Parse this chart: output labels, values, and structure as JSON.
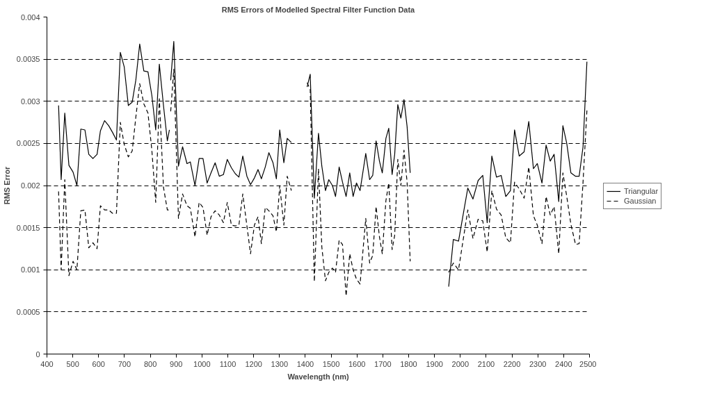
{
  "chart_data": {
    "type": "line",
    "title": "RMS Errors of Modelled Spectral Filter Function Data",
    "xlabel": "Wavelength (nm)",
    "ylabel": "RMS Error",
    "x": [
      445,
      455,
      469,
      485,
      501,
      516,
      531,
      547,
      562,
      578,
      594,
      607,
      623,
      639,
      654,
      669,
      684,
      699,
      715,
      730,
      744,
      759,
      775,
      791,
      806,
      821,
      835,
      851,
      866,
      874,
      877,
      879,
      891,
      909,
      925,
      942,
      955,
      973,
      989,
      1004,
      1020,
      1035,
      1051,
      1067,
      1083,
      1098,
      1114,
      1129,
      1143,
      1158,
      1174,
      1188,
      1203,
      1217,
      1230,
      1245,
      1259,
      1275,
      1288,
      1301,
      1317,
      1330,
      1346,
      1377,
      1407,
      1419,
      1435,
      1451,
      1464,
      1478,
      1491,
      1505,
      1517,
      1531,
      1544,
      1558,
      1572,
      1585,
      1598,
      1612,
      1634,
      1649,
      1661,
      1674,
      1687,
      1698,
      1712,
      1723,
      1736,
      1746,
      1758,
      1770,
      1782,
      1794,
      1806,
      1880,
      1955,
      1973,
      1993,
      2029,
      2049,
      2069,
      2087,
      2104,
      2122,
      2140,
      2158,
      2176,
      2194,
      2210,
      2228,
      2247,
      2265,
      2283,
      2298,
      2316,
      2332,
      2348,
      2363,
      2381,
      2397,
      2412,
      2428,
      2446,
      2460,
      2475,
      2490
    ],
    "series": [
      {
        "name": "Triangular",
        "color": "#000000",
        "line_style": "solid",
        "values": [
          0.00295,
          0.00207,
          0.00286,
          0.00224,
          0.00216,
          0.002,
          0.00267,
          0.00266,
          0.00237,
          0.00232,
          0.00237,
          0.00265,
          0.00277,
          0.00271,
          0.00263,
          0.00254,
          0.00358,
          0.00341,
          0.00295,
          0.00299,
          0.00325,
          0.00368,
          0.00336,
          0.00335,
          0.00307,
          0.00266,
          0.00344,
          0.00295,
          0.00253,
          0.00266,
          null,
          0.00325,
          0.00371,
          0.00223,
          0.00246,
          0.00226,
          0.00228,
          0.002,
          0.00232,
          0.00232,
          0.00203,
          0.00215,
          0.00227,
          0.00211,
          0.00213,
          0.00231,
          0.00221,
          0.00214,
          0.0021,
          0.00235,
          0.00211,
          0.00201,
          0.00209,
          0.00219,
          0.00208,
          0.00222,
          0.00239,
          0.00227,
          0.00208,
          0.00266,
          0.00227,
          0.00256,
          0.00251,
          null,
          0.00317,
          0.00332,
          0.00185,
          0.00262,
          0.00223,
          0.00194,
          0.00207,
          0.002,
          0.00187,
          0.00222,
          0.00204,
          0.00187,
          0.00215,
          0.00187,
          0.00203,
          0.00194,
          0.00238,
          0.00207,
          0.00212,
          0.00253,
          0.00229,
          0.00215,
          0.00256,
          0.00268,
          0.00213,
          0.00237,
          0.00296,
          0.0028,
          0.00302,
          0.0027,
          0.00215,
          null,
          0.0008,
          0.00136,
          0.00134,
          0.00197,
          0.00184,
          0.00206,
          0.00212,
          0.00156,
          0.00235,
          0.0021,
          0.00212,
          0.00187,
          0.00194,
          0.00266,
          0.00235,
          0.0024,
          0.00276,
          0.0022,
          0.00226,
          0.00203,
          0.00248,
          0.00229,
          0.00237,
          0.00181,
          0.00271,
          0.0025,
          0.00215,
          0.00211,
          0.00211,
          0.00246,
          0.00347
        ]
      },
      {
        "name": "Gaussian",
        "color": "#000000",
        "line_style": "dashed",
        "values": [
          0.00193,
          0.001,
          0.00207,
          0.00093,
          0.0011,
          0.001,
          0.0017,
          0.00171,
          0.00126,
          0.00132,
          0.00125,
          0.00176,
          0.00171,
          0.00171,
          0.00167,
          0.00167,
          0.00275,
          0.00249,
          0.00234,
          0.00241,
          0.00281,
          0.00321,
          0.00297,
          0.00286,
          0.00242,
          0.0018,
          0.00303,
          0.00198,
          0.00171,
          0.00171,
          null,
          0.00288,
          0.00338,
          0.00161,
          0.0019,
          0.00176,
          0.00173,
          0.00139,
          0.0018,
          0.00174,
          0.00141,
          0.00163,
          0.0017,
          0.00165,
          0.00156,
          0.0018,
          0.00153,
          0.00152,
          0.00153,
          0.0019,
          0.00152,
          0.00119,
          0.00153,
          0.00163,
          0.00131,
          0.00174,
          0.0017,
          0.00164,
          0.00145,
          0.002,
          0.00153,
          0.00211,
          0.00194,
          null,
          0.00322,
          0.00314,
          0.00086,
          0.0022,
          0.00127,
          0.00087,
          0.00097,
          0.00102,
          0.00097,
          0.00135,
          0.0013,
          0.00069,
          0.00119,
          0.001,
          0.00089,
          0.00083,
          0.00161,
          0.00108,
          0.00117,
          0.00175,
          0.00139,
          0.00119,
          0.00182,
          0.00203,
          0.00124,
          0.00141,
          0.00231,
          0.002,
          0.00242,
          0.00204,
          0.0011,
          null,
          0.00097,
          0.00108,
          0.001,
          0.00171,
          0.00137,
          0.0016,
          0.00158,
          0.00121,
          0.00194,
          0.00172,
          0.00165,
          0.00138,
          0.00132,
          0.00204,
          0.00196,
          0.00185,
          0.00222,
          0.00164,
          0.00153,
          0.00131,
          0.00187,
          0.00165,
          0.00175,
          0.00119,
          0.00215,
          0.00187,
          0.00154,
          0.0013,
          0.00131,
          0.00204,
          0.00289
        ]
      }
    ],
    "xlim": [
      400,
      2500
    ],
    "xticks": [
      400,
      500,
      600,
      700,
      800,
      900,
      1000,
      1100,
      1200,
      1300,
      1400,
      1500,
      1600,
      1700,
      1800,
      1900,
      2000,
      2100,
      2200,
      2300,
      2400,
      2500
    ],
    "ylim": [
      0,
      0.004
    ],
    "yticks": [
      0,
      0.0005,
      0.001,
      0.0015,
      0.002,
      0.0025,
      0.003,
      0.0035,
      0.004
    ],
    "grid": "y",
    "legend": "right"
  }
}
